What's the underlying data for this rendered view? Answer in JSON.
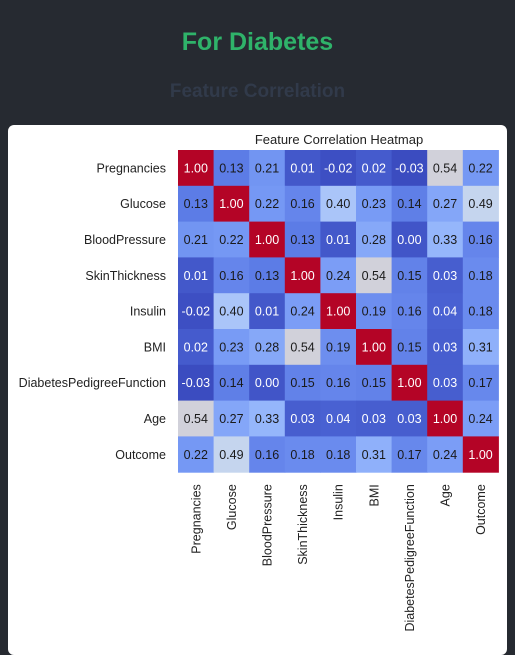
{
  "page": {
    "title": "For Diabetes",
    "section_title": "Feature Correlation"
  },
  "chart_data": {
    "type": "heatmap",
    "title": "Feature Correlation Heatmap",
    "xlabel": "",
    "ylabel": "",
    "rows": [
      "Pregnancies",
      "Glucose",
      "BloodPressure",
      "SkinThickness",
      "Insulin",
      "BMI",
      "DiabetesPedigreeFunction",
      "Age",
      "Outcome"
    ],
    "columns": [
      "Pregnancies",
      "Glucose",
      "BloodPressure",
      "SkinThickness",
      "Insulin",
      "BMI",
      "DiabetesPedigreeFunction",
      "Age",
      "Outcome"
    ],
    "values": [
      [
        1.0,
        0.13,
        0.21,
        0.01,
        -0.02,
        0.02,
        -0.03,
        0.54,
        0.22
      ],
      [
        0.13,
        1.0,
        0.22,
        0.16,
        0.4,
        0.23,
        0.14,
        0.27,
        0.49
      ],
      [
        0.21,
        0.22,
        1.0,
        0.13,
        0.01,
        0.28,
        0.0,
        0.33,
        0.16
      ],
      [
        0.01,
        0.16,
        0.13,
        1.0,
        0.24,
        0.54,
        0.15,
        0.03,
        0.18
      ],
      [
        -0.02,
        0.4,
        0.01,
        0.24,
        1.0,
        0.19,
        0.16,
        0.04,
        0.18
      ],
      [
        0.02,
        0.23,
        0.28,
        0.54,
        0.19,
        1.0,
        0.15,
        0.03,
        0.31
      ],
      [
        -0.03,
        0.14,
        0.0,
        0.15,
        0.16,
        0.15,
        1.0,
        0.03,
        0.17
      ],
      [
        0.54,
        0.27,
        0.33,
        0.03,
        0.04,
        0.03,
        0.03,
        1.0,
        0.24
      ],
      [
        0.22,
        0.49,
        0.16,
        0.18,
        0.18,
        0.31,
        0.17,
        0.24,
        1.0
      ]
    ],
    "colormap": "coolwarm",
    "value_range": [
      -0.03,
      1.0
    ],
    "annotated": true,
    "value_format": "2 decimals",
    "legend": "none",
    "grid": false
  }
}
